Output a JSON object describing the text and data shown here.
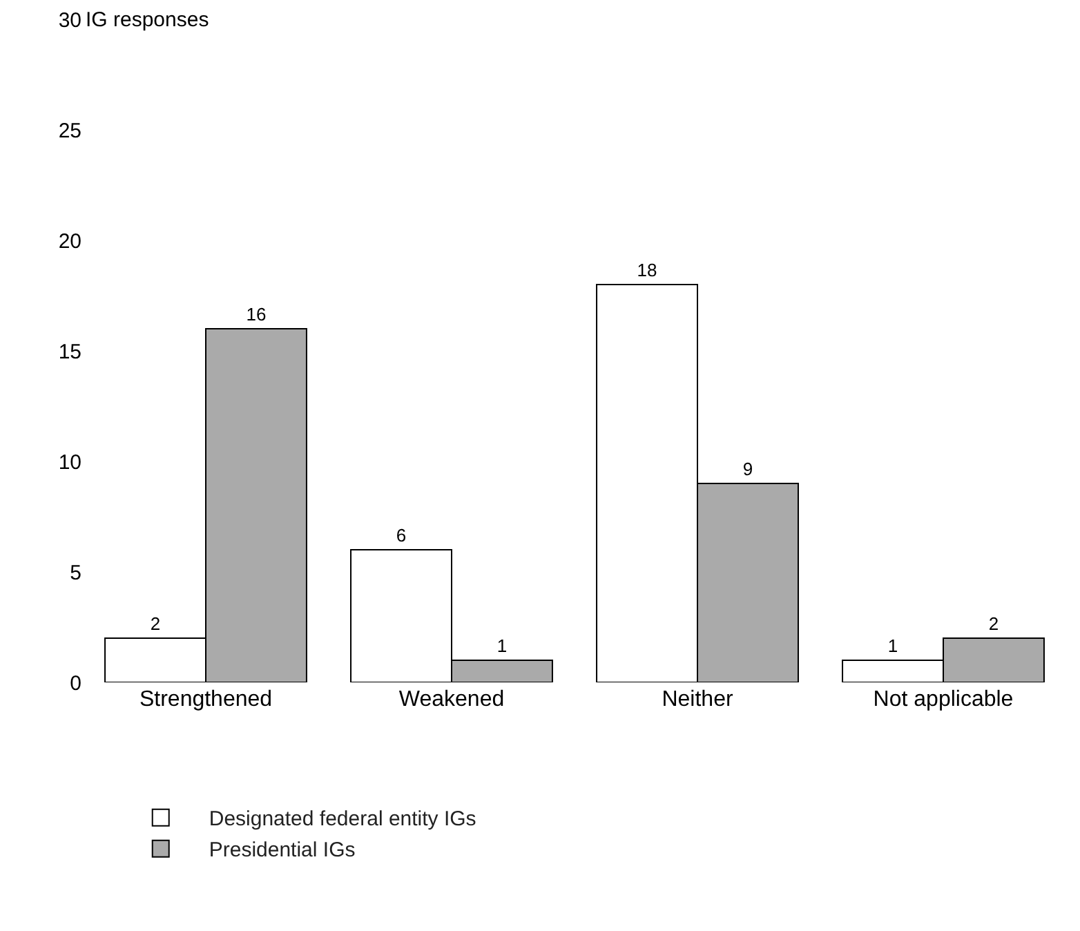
{
  "chart_data": {
    "type": "bar",
    "ylabel": "IG responses",
    "categories": [
      "Strengthened",
      "Weakened",
      "Neither",
      "Not applicable"
    ],
    "series": [
      {
        "name": "Designated federal entity IGs",
        "color": "#ffffff",
        "values": [
          2,
          6,
          18,
          1
        ]
      },
      {
        "name": "Presidential IGs",
        "color": "#aaaaaa",
        "values": [
          16,
          1,
          9,
          2
        ]
      }
    ],
    "ylim": [
      0,
      30
    ],
    "yticks": [
      0,
      5,
      10,
      15,
      20,
      25,
      30
    ],
    "grid": false,
    "legend": "bottom left",
    "data_labels": true
  }
}
